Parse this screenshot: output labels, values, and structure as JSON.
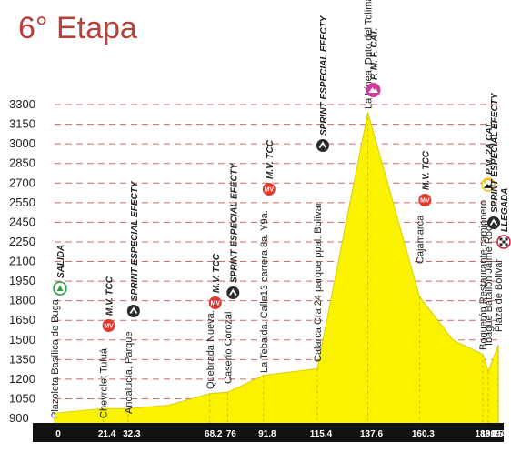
{
  "header": {
    "title": "6° Etapa"
  },
  "chart_data": {
    "type": "area",
    "title": "6° Etapa",
    "xlabel": "",
    "ylabel": "",
    "ylim": [
      900,
      3300
    ],
    "yticks": [
      900,
      1050,
      1200,
      1350,
      1500,
      1650,
      1800,
      1950,
      2100,
      2250,
      2450,
      2550,
      2700,
      2850,
      3000,
      3150,
      3300
    ],
    "x_ticks": [
      "0",
      "21.4",
      "32.3",
      "68.2",
      "76",
      "91.8",
      "115.4",
      "137.6",
      "160.3",
      "188.1",
      "190.5",
      "194.9"
    ],
    "profile": [
      {
        "km": 0,
        "alt": 940
      },
      {
        "km": 21.4,
        "alt": 975
      },
      {
        "km": 32.3,
        "alt": 975
      },
      {
        "km": 50,
        "alt": 1000
      },
      {
        "km": 68.2,
        "alt": 1090
      },
      {
        "km": 76,
        "alt": 1100
      },
      {
        "km": 91.8,
        "alt": 1230
      },
      {
        "km": 115.4,
        "alt": 1280
      },
      {
        "km": 137.6,
        "alt": 3240
      },
      {
        "km": 160.3,
        "alt": 1830
      },
      {
        "km": 175,
        "alt": 1500
      },
      {
        "km": 188.1,
        "alt": 1390
      },
      {
        "km": 190.5,
        "alt": 1260
      },
      {
        "km": 194.9,
        "alt": 1460
      }
    ],
    "places": [
      {
        "km": 0,
        "label": "Plazoleta Basílica de Buga"
      },
      {
        "km": 21.4,
        "label": "Chevrolet Tuluá"
      },
      {
        "km": 32.3,
        "label": "Andalucía. Parque"
      },
      {
        "km": 68.2,
        "label": "Quebrada Nueva."
      },
      {
        "km": 76,
        "label": "Caserío Corozal"
      },
      {
        "km": 91.8,
        "label": "La Tebaida. Calle13 carrera 8a. Y9a."
      },
      {
        "km": 115.4,
        "label": "Calarca Cra 24 parque ppal. Bolívar"
      },
      {
        "km": 137.6,
        "label": "La Línea, Dpto del Tolima."
      },
      {
        "km": 160.3,
        "label": "Cajamarca"
      },
      {
        "km": 188.1,
        "label": "Boquerón Restaurante camionero"
      },
      {
        "km": 190.5,
        "label": "Ibagué Batallón Jaime Rook"
      },
      {
        "km": 194.9,
        "label": "Plaza de Bolívar"
      }
    ],
    "markers": [
      {
        "km": 0,
        "kind": "salida",
        "icon": "start-flag-icon",
        "label": "SALIDA",
        "color": "#2e9a4a"
      },
      {
        "km": 21.4,
        "kind": "mv",
        "icon": "meta-volante-icon",
        "label": "M.V. TCC",
        "color": "#e03a2f"
      },
      {
        "km": 32.3,
        "kind": "sprint",
        "icon": "sprint-icon",
        "label": "SPRINT ESPECIAL EFECTY",
        "color": "#2a2a2a"
      },
      {
        "km": 68.2,
        "kind": "mv",
        "icon": "meta-volante-icon",
        "label": "M.V. TCC",
        "color": "#e03a2f"
      },
      {
        "km": 76,
        "kind": "sprint",
        "icon": "sprint-icon",
        "label": "SPRINT ESPECIAL EFECTY",
        "color": "#2a2a2a"
      },
      {
        "km": 91.8,
        "kind": "mv",
        "icon": "meta-volante-icon",
        "label": "M.V. TCC",
        "color": "#e03a2f"
      },
      {
        "km": 115.4,
        "kind": "sprint",
        "icon": "sprint-icon",
        "label": "SPRINT ESPECIAL EFECTY",
        "color": "#2a2a2a"
      },
      {
        "km": 137.6,
        "kind": "mountain-special",
        "icon": "mountain-special-icon",
        "label": "P. M. F. CAT.",
        "color": "#d63b9a"
      },
      {
        "km": 160.3,
        "kind": "mv",
        "icon": "meta-volante-icon",
        "label": "M.V. TCC",
        "color": "#e03a2f"
      },
      {
        "km": 188.1,
        "kind": "mountain",
        "icon": "mountain-cat2-icon",
        "label": "P.M. 2A CAT.",
        "color": "#f2c21a"
      },
      {
        "km": 190.5,
        "kind": "sprint",
        "icon": "sprint-icon",
        "label": "SPRINT ESPECIAL EFECTY",
        "color": "#2a2a2a"
      },
      {
        "km": 194.9,
        "kind": "llegada",
        "icon": "finish-flag-icon",
        "label": "LLEGADA",
        "color": "#c0283a"
      }
    ],
    "colors": {
      "area": "#fbf200",
      "area_edge": "#d9cf00",
      "grid": "#c86a6a",
      "axis_bar": "#111111",
      "title": "#b8403a"
    }
  }
}
